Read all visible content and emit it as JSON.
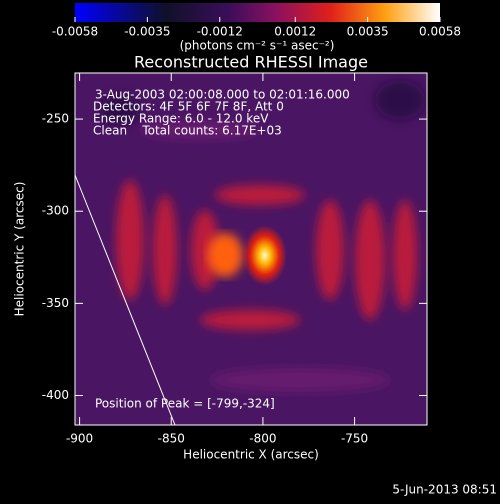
{
  "chart_data": {
    "type": "heatmap",
    "title": "Reconstructed RHESSI Image",
    "xlabel": "Heliocentric X (arcsec)",
    "ylabel": "Heliocentric Y (arcsec)",
    "xlim": [
      -902.5,
      -710.5
    ],
    "ylim": [
      -416,
      -225
    ],
    "xticks": [
      -900,
      -850,
      -800,
      -750
    ],
    "yticks": [
      -400,
      -350,
      -300,
      -250
    ],
    "colorbar": {
      "lim": [
        -0.0058,
        0.0058
      ],
      "ticks": [
        -0.0058,
        -0.0035,
        -0.0012,
        0.0012,
        0.0035,
        0.0058
      ],
      "label": "(photons cm⁻² s⁻¹ asec⁻²)"
    },
    "annotations": [
      "3-Aug-2003 02:00:08.000 to 02:01:16.000",
      "Detectors: 4F 5F 6F 7F 8F, Att 0",
      "Energy Range: 6.0 - 12.0 keV",
      "Clean    Total counts: 6.17E+03"
    ],
    "peak": {
      "label": "Position of Peak = [-799,-324]",
      "x": -799,
      "y": -324
    },
    "footer": "5-Jun-2013 08:51"
  }
}
